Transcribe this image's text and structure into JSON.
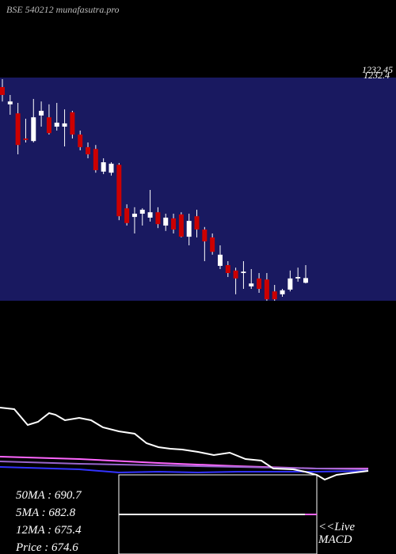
{
  "chart_data": {
    "type": "candlestick",
    "title": "BSE 540212 munafasutra.pro",
    "price_labels": [
      "1232.45",
      "1232.4"
    ],
    "ylim": [
      612,
      1232.45
    ],
    "up_color": "#ffffff",
    "down_color": "#cc0000",
    "panel_color": "#191960",
    "open": [
      1206,
      1158,
      1133,
      1063,
      1056,
      1127,
      1122,
      1096,
      1096,
      1136,
      1074,
      1039,
      1034,
      971,
      968,
      990,
      869,
      845,
      854,
      843,
      858,
      821,
      841,
      852,
      790,
      847,
      810,
      788,
      709,
      711,
      696,
      689,
      652,
      674,
      671,
      638,
      630,
      643,
      674,
      662
    ],
    "close": [
      1184,
      1166,
      1045,
      1059,
      1122,
      1140,
      1078,
      1107,
      1105,
      1074,
      1039,
      1019,
      975,
      997,
      993,
      847,
      828,
      854,
      865,
      858,
      825,
      843,
      810,
      790,
      834,
      810,
      777,
      748,
      740,
      689,
      674,
      693,
      660,
      645,
      616,
      616,
      641,
      674,
      678,
      675
    ],
    "high": [
      1228,
      1184,
      1162,
      1118,
      1173,
      1166,
      1158,
      1162,
      1144,
      1140,
      1085,
      1052,
      1045,
      1008,
      997,
      995,
      880,
      872,
      869,
      920,
      872,
      854,
      854,
      858,
      854,
      865,
      817,
      799,
      766,
      722,
      704,
      722,
      700,
      689,
      689,
      656,
      645,
      696,
      704,
      711
    ],
    "low": [
      1166,
      1129,
      1019,
      1052,
      1052,
      1096,
      1074,
      1085,
      1041,
      1063,
      1030,
      1008,
      968,
      964,
      960,
      836,
      821,
      799,
      821,
      832,
      814,
      806,
      799,
      788,
      766,
      788,
      722,
      740,
      700,
      678,
      630,
      645,
      645,
      634,
      612,
      612,
      623,
      638,
      665,
      660
    ]
  },
  "indicators": [
    "50MA : 690.7",
    "5MA : 682.8",
    "12MA : 675.4",
    "Price   : 674.6"
  ],
  "macd_label": [
    "<<Live",
    "MACD"
  ]
}
